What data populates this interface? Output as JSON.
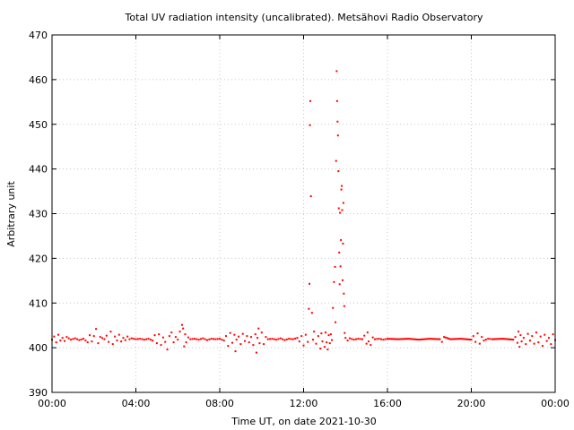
{
  "chart_data": {
    "type": "scatter",
    "title": "Total UV radiation intensity (uncalibrated). Metsähovi Radio Observatory",
    "xlabel": "Time UT, on date 2021-10-30",
    "ylabel": "Arbitrary unit",
    "xlim": [
      0,
      24
    ],
    "ylim": [
      390,
      470
    ],
    "x_unit": "hours UT",
    "x_ticks": [
      {
        "value": 0,
        "label": "00:00"
      },
      {
        "value": 4,
        "label": "04:00"
      },
      {
        "value": 8,
        "label": "08:00"
      },
      {
        "value": 12,
        "label": "12:00"
      },
      {
        "value": 16,
        "label": "16:00"
      },
      {
        "value": 20,
        "label": "20:00"
      },
      {
        "value": 24,
        "label": "00:00"
      }
    ],
    "y_ticks": [
      {
        "value": 390,
        "label": "390"
      },
      {
        "value": 400,
        "label": "400"
      },
      {
        "value": 410,
        "label": "410"
      },
      {
        "value": 420,
        "label": "420"
      },
      {
        "value": 430,
        "label": "430"
      },
      {
        "value": 440,
        "label": "440"
      },
      {
        "value": 450,
        "label": "450"
      },
      {
        "value": 460,
        "label": "460"
      },
      {
        "value": 470,
        "label": "470"
      }
    ],
    "grid": true,
    "marker_color": "#ff0000",
    "series": [
      {
        "values": [
          [
            0.0,
            401.8
          ],
          [
            0.1,
            402.5
          ],
          [
            0.2,
            401.2
          ],
          [
            0.3,
            402.9
          ],
          [
            0.4,
            401.6
          ],
          [
            0.5,
            402.2
          ],
          [
            0.6,
            401.5
          ],
          [
            0.7,
            402.4
          ],
          [
            0.9,
            401.8
          ],
          [
            1.1,
            402.1
          ],
          [
            1.3,
            401.7
          ],
          [
            1.5,
            402.0
          ],
          [
            1.7,
            401.2
          ],
          [
            1.8,
            402.8
          ],
          [
            1.9,
            401.4
          ],
          [
            2.0,
            402.6
          ],
          [
            2.1,
            404.2
          ],
          [
            2.2,
            401.0
          ],
          [
            2.3,
            402.4
          ],
          [
            2.5,
            401.9
          ],
          [
            2.6,
            402.7
          ],
          [
            2.7,
            401.3
          ],
          [
            2.8,
            403.6
          ],
          [
            2.9,
            400.8
          ],
          [
            3.0,
            402.5
          ],
          [
            3.1,
            401.6
          ],
          [
            3.2,
            402.9
          ],
          [
            3.3,
            401.4
          ],
          [
            3.4,
            402.2
          ],
          [
            3.5,
            401.7
          ],
          [
            3.6,
            402.5
          ],
          [
            3.7,
            401.9
          ],
          [
            3.8,
            402.1
          ],
          [
            4.0,
            401.9
          ],
          [
            4.2,
            402.0
          ],
          [
            4.4,
            401.8
          ],
          [
            4.6,
            402.0
          ],
          [
            4.8,
            401.6
          ],
          [
            4.9,
            402.8
          ],
          [
            5.0,
            401.0
          ],
          [
            5.1,
            403.0
          ],
          [
            5.2,
            400.6
          ],
          [
            5.3,
            402.3
          ],
          [
            5.4,
            401.3
          ],
          [
            5.5,
            399.6
          ],
          [
            5.6,
            402.6
          ],
          [
            5.7,
            403.4
          ],
          [
            5.8,
            401.2
          ],
          [
            5.9,
            402.4
          ],
          [
            6.0,
            401.8
          ],
          [
            6.1,
            403.6
          ],
          [
            6.2,
            405.1
          ],
          [
            6.25,
            404.3
          ],
          [
            6.3,
            400.3
          ],
          [
            6.35,
            403.0
          ],
          [
            6.4,
            401.2
          ],
          [
            6.5,
            402.3
          ],
          [
            6.6,
            401.9
          ],
          [
            6.8,
            402.0
          ],
          [
            7.0,
            401.8
          ],
          [
            7.2,
            402.1
          ],
          [
            7.4,
            401.7
          ],
          [
            7.6,
            402.0
          ],
          [
            7.8,
            401.9
          ],
          [
            8.0,
            402.0
          ],
          [
            8.2,
            401.6
          ],
          [
            8.3,
            402.6
          ],
          [
            8.4,
            400.4
          ],
          [
            8.5,
            403.3
          ],
          [
            8.6,
            401.1
          ],
          [
            8.7,
            402.9
          ],
          [
            8.75,
            399.2
          ],
          [
            8.8,
            401.8
          ],
          [
            8.9,
            402.5
          ],
          [
            9.0,
            400.8
          ],
          [
            9.1,
            403.1
          ],
          [
            9.2,
            401.5
          ],
          [
            9.3,
            402.6
          ],
          [
            9.4,
            401.2
          ],
          [
            9.5,
            402.4
          ],
          [
            9.6,
            400.6
          ],
          [
            9.7,
            403.0
          ],
          [
            9.75,
            398.9
          ],
          [
            9.8,
            402.2
          ],
          [
            9.85,
            404.3
          ],
          [
            9.9,
            401.0
          ],
          [
            10.0,
            403.4
          ],
          [
            10.1,
            400.8
          ],
          [
            10.2,
            402.4
          ],
          [
            10.3,
            401.9
          ],
          [
            10.5,
            402.0
          ],
          [
            10.7,
            401.8
          ],
          [
            10.9,
            402.1
          ],
          [
            11.1,
            401.7
          ],
          [
            11.3,
            402.0
          ],
          [
            11.5,
            401.9
          ],
          [
            11.7,
            402.2
          ],
          [
            11.8,
            401.4
          ],
          [
            11.9,
            402.6
          ],
          [
            12.0,
            400.5
          ],
          [
            12.1,
            402.9
          ],
          [
            12.2,
            401.3
          ],
          [
            12.25,
            408.7
          ],
          [
            12.28,
            414.3
          ],
          [
            12.3,
            449.8
          ],
          [
            12.32,
            455.2
          ],
          [
            12.35,
            433.9
          ],
          [
            12.4,
            407.8
          ],
          [
            12.45,
            401.8
          ],
          [
            12.5,
            403.6
          ],
          [
            12.6,
            400.9
          ],
          [
            12.7,
            402.6
          ],
          [
            12.8,
            399.8
          ],
          [
            12.85,
            403.2
          ],
          [
            12.9,
            401.4
          ],
          [
            13.0,
            400.2
          ],
          [
            13.05,
            403.4
          ],
          [
            13.1,
            401.2
          ],
          [
            13.15,
            399.6
          ],
          [
            13.2,
            402.8
          ],
          [
            13.25,
            401.0
          ],
          [
            13.3,
            403.0
          ],
          [
            13.35,
            401.7
          ],
          [
            13.4,
            408.9
          ],
          [
            13.45,
            414.7
          ],
          [
            13.5,
            418.1
          ],
          [
            13.52,
            405.7
          ],
          [
            13.55,
            441.8
          ],
          [
            13.58,
            461.9
          ],
          [
            13.6,
            455.2
          ],
          [
            13.62,
            450.6
          ],
          [
            13.64,
            447.5
          ],
          [
            13.66,
            439.5
          ],
          [
            13.68,
            431.2
          ],
          [
            13.7,
            421.3
          ],
          [
            13.72,
            414.2
          ],
          [
            13.74,
            430.2
          ],
          [
            13.76,
            418.2
          ],
          [
            13.78,
            424.1
          ],
          [
            13.8,
            435.4
          ],
          [
            13.82,
            436.2
          ],
          [
            13.84,
            430.8
          ],
          [
            13.86,
            415.1
          ],
          [
            13.88,
            423.3
          ],
          [
            13.9,
            432.4
          ],
          [
            13.92,
            412.1
          ],
          [
            13.94,
            409.3
          ],
          [
            13.96,
            403.3
          ],
          [
            14.0,
            402.2
          ],
          [
            14.1,
            401.6
          ],
          [
            14.2,
            402.1
          ],
          [
            14.4,
            401.8
          ],
          [
            14.6,
            402.0
          ],
          [
            14.8,
            401.9
          ],
          [
            14.9,
            402.7
          ],
          [
            15.0,
            400.9
          ],
          [
            15.05,
            403.4
          ],
          [
            15.1,
            401.4
          ],
          [
            15.2,
            400.6
          ],
          [
            15.3,
            402.3
          ],
          [
            15.4,
            401.9
          ],
          [
            15.6,
            402.0
          ],
          [
            15.8,
            401.8
          ],
          [
            16.0,
            402.0
          ],
          [
            16.5,
            401.9
          ],
          [
            17.0,
            402.0
          ],
          [
            17.5,
            401.8
          ],
          [
            18.0,
            402.0
          ],
          [
            18.5,
            401.9
          ],
          [
            18.6,
            401.3
          ],
          [
            18.7,
            402.4
          ],
          [
            19.0,
            401.9
          ],
          [
            19.5,
            402.0
          ],
          [
            20.0,
            401.8
          ],
          [
            20.1,
            402.6
          ],
          [
            20.2,
            401.3
          ],
          [
            20.3,
            403.2
          ],
          [
            20.4,
            400.9
          ],
          [
            20.5,
            402.4
          ],
          [
            20.6,
            401.6
          ],
          [
            20.8,
            402.0
          ],
          [
            21.0,
            401.9
          ],
          [
            21.5,
            402.0
          ],
          [
            22.0,
            401.8
          ],
          [
            22.1,
            402.4
          ],
          [
            22.2,
            401.1
          ],
          [
            22.25,
            403.6
          ],
          [
            22.3,
            400.2
          ],
          [
            22.35,
            402.8
          ],
          [
            22.4,
            401.4
          ],
          [
            22.5,
            402.2
          ],
          [
            22.6,
            400.8
          ],
          [
            22.7,
            403.1
          ],
          [
            22.8,
            401.6
          ],
          [
            22.9,
            402.6
          ],
          [
            23.0,
            400.9
          ],
          [
            23.1,
            403.4
          ],
          [
            23.2,
            401.2
          ],
          [
            23.3,
            402.5
          ],
          [
            23.4,
            400.4
          ],
          [
            23.5,
            402.9
          ],
          [
            23.6,
            401.5
          ],
          [
            23.7,
            402.2
          ],
          [
            23.8,
            400.8
          ],
          [
            23.9,
            403.0
          ],
          [
            24.0,
            401.7
          ]
        ]
      }
    ]
  }
}
